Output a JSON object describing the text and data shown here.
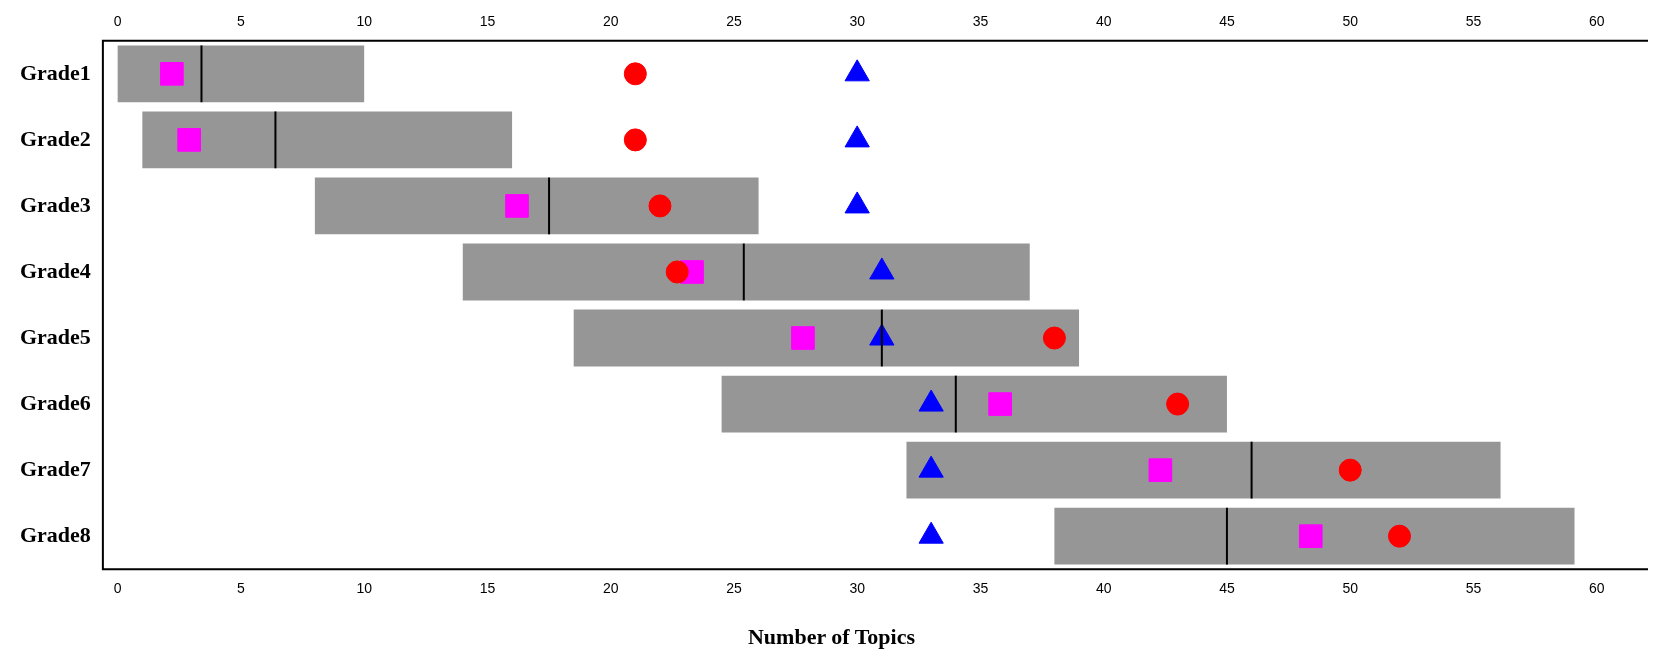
{
  "chart_data": {
    "type": "box",
    "orientation": "horizontal",
    "xlabel": "Number of Topics",
    "categories": [
      "Grade1",
      "Grade2",
      "Grade3",
      "Grade4",
      "Grade5",
      "Grade6",
      "Grade7",
      "Grade8"
    ],
    "xlim": [
      -0.6,
      62
    ],
    "xticks": [
      0,
      5,
      10,
      15,
      20,
      25,
      30,
      35,
      40,
      45,
      50,
      55,
      60
    ],
    "x2lim": [
      -0.6,
      62
    ],
    "x2ticks": [
      0,
      5,
      10,
      15,
      20,
      25,
      30,
      35,
      40,
      45,
      50,
      55,
      60
    ],
    "grid": false,
    "legend": false,
    "series": [
      {
        "color": "#969696",
        "boxes": [
          {
            "low": 0,
            "q1": 0,
            "median": 3.4,
            "q3": 10,
            "high": 10
          },
          {
            "low": 1,
            "q1": 1,
            "median": 6.4,
            "q3": 16,
            "high": 16
          },
          {
            "low": 8,
            "q1": 8,
            "median": 17.5,
            "q3": 26,
            "high": 26
          },
          {
            "low": 14,
            "q1": 14,
            "median": 25.4,
            "q3": 37,
            "high": 37
          },
          {
            "low": 18.5,
            "q1": 18.5,
            "median": 31,
            "q3": 39,
            "high": 39
          },
          {
            "low": 24.5,
            "q1": 24.5,
            "median": 34,
            "q3": 45,
            "high": 45
          },
          {
            "low": 32,
            "q1": 32,
            "median": 46,
            "q3": 56.1,
            "high": 56.1
          },
          {
            "low": 38,
            "q1": 38,
            "median": 45,
            "q3": 59.1,
            "high": 59.1
          }
        ]
      },
      {
        "type": "scatter",
        "marker": "circle",
        "color": "#ff0000",
        "x": [
          "Grade1",
          "Grade2",
          "Grade3",
          "Grade4",
          "Grade5",
          "Grade6",
          "Grade7",
          "Grade8"
        ],
        "values": [
          21,
          21,
          22,
          22.7,
          38,
          43,
          50,
          52
        ]
      },
      {
        "type": "scatter",
        "marker": "square",
        "color": "#ff00ff",
        "x": [
          "Grade1",
          "Grade2",
          "Grade3",
          "Grade4",
          "Grade5",
          "Grade6",
          "Grade7",
          "Grade8"
        ],
        "values": [
          2.2,
          2.9,
          16.2,
          23.3,
          27.8,
          35.8,
          42.3,
          48.4
        ]
      },
      {
        "type": "scatter",
        "marker": "triangle",
        "color": "#0000ff",
        "x": [
          "Grade1",
          "Grade2",
          "Grade3",
          "Grade4",
          "Grade5",
          "Grade6",
          "Grade7",
          "Grade8"
        ],
        "values": [
          30,
          30,
          30,
          31,
          31,
          33,
          33,
          33
        ]
      }
    ]
  }
}
